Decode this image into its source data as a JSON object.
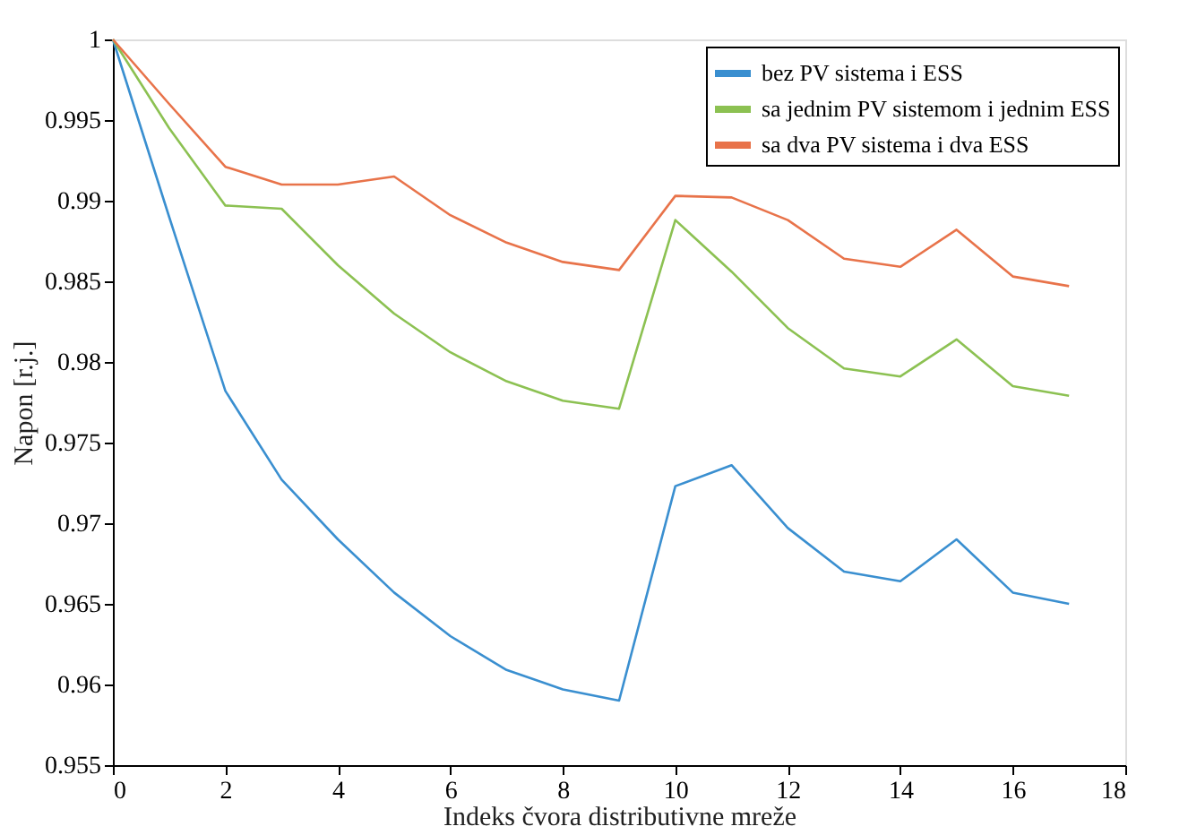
{
  "chart_data": {
    "type": "line",
    "xlabel": "Indeks čvora distributivne mreže",
    "ylabel": "Napon [r.j.]",
    "x": [
      0,
      1,
      2,
      3,
      4,
      5,
      6,
      7,
      8,
      9,
      10,
      11,
      12,
      13,
      14,
      15,
      16,
      17
    ],
    "xlim": [
      0,
      18
    ],
    "xticks": [
      0,
      2,
      4,
      6,
      8,
      10,
      12,
      14,
      16,
      18
    ],
    "ylim": [
      0.955,
      1
    ],
    "yticks": [
      0.955,
      0.96,
      0.965,
      0.97,
      0.975,
      0.98,
      0.985,
      0.99,
      0.995,
      1
    ],
    "grid": false,
    "legend": "top right",
    "marker": "none",
    "line_style": "solid",
    "series": [
      {
        "name": "bez PV sistema i ESS",
        "color": "#3a8fd0",
        "values": [
          1.0,
          0.989,
          0.9782,
          0.9727,
          0.969,
          0.9657,
          0.963,
          0.9609,
          0.9597,
          0.959,
          0.9723,
          0.9736,
          0.9697,
          0.967,
          0.9664,
          0.969,
          0.9657,
          0.965
        ]
      },
      {
        "name": "sa jednim PV sistemom i jednim ESS",
        "color": "#8cc152",
        "values": [
          1.0,
          0.9945,
          0.9897,
          0.9895,
          0.986,
          0.983,
          0.9806,
          0.9788,
          0.9776,
          0.9771,
          0.9888,
          0.9856,
          0.9821,
          0.9796,
          0.9791,
          0.9814,
          0.9785,
          0.9779
        ]
      },
      {
        "name": "sa dva PV sistema i dva ESS",
        "color": "#e8734a",
        "values": [
          1.0,
          0.996,
          0.9921,
          0.991,
          0.991,
          0.9915,
          0.9891,
          0.9874,
          0.9862,
          0.9857,
          0.9903,
          0.9902,
          0.9888,
          0.9864,
          0.9859,
          0.9882,
          0.9853,
          0.9847
        ]
      }
    ]
  }
}
